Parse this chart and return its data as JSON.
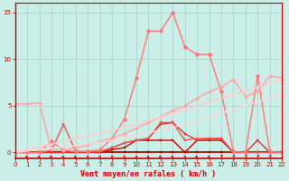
{
  "xlabel": "Vent moyen/en rafales ( km/h )",
  "bg_color": "#cceee8",
  "grid_color": "#aaddcc",
  "axis_color": "#cc0000",
  "text_color": "#cc0000",
  "xlim": [
    0,
    22
  ],
  "ylim": [
    -0.6,
    16
  ],
  "yticks": [
    0,
    5,
    10,
    15
  ],
  "xticks": [
    0,
    1,
    2,
    3,
    4,
    5,
    6,
    7,
    8,
    9,
    10,
    11,
    12,
    13,
    14,
    15,
    16,
    17,
    18,
    19,
    20,
    21,
    22
  ],
  "series": [
    {
      "x": [
        0,
        1,
        2,
        3,
        4,
        5,
        6,
        7,
        8,
        9,
        10,
        11,
        12,
        13,
        14,
        15,
        16,
        17,
        18,
        19,
        20,
        21,
        22
      ],
      "y": [
        0,
        0,
        0,
        0,
        0,
        0,
        0,
        0,
        0,
        0,
        0,
        0,
        0,
        0,
        0,
        0,
        0,
        0,
        0,
        0,
        0,
        0,
        0
      ],
      "color": "#aa0000",
      "lw": 1.2,
      "marker": "s",
      "ms": 2.0
    },
    {
      "x": [
        0,
        1,
        2,
        3,
        4,
        5,
        6,
        7,
        8,
        9,
        10,
        11,
        12,
        13,
        14,
        15,
        16,
        17,
        18,
        19,
        20,
        21,
        22
      ],
      "y": [
        0,
        0,
        0,
        0,
        0,
        0,
        0,
        0,
        0.3,
        0.5,
        1.3,
        1.3,
        1.3,
        1.3,
        0,
        1.3,
        1.3,
        1.3,
        0,
        0,
        0,
        0,
        0
      ],
      "color": "#cc0000",
      "lw": 1.0,
      "marker": "s",
      "ms": 2.0
    },
    {
      "x": [
        0,
        1,
        2,
        3,
        4,
        5,
        6,
        7,
        8,
        9,
        10,
        11,
        12,
        13,
        14,
        15,
        16,
        17,
        18,
        19,
        20,
        21,
        22
      ],
      "y": [
        0,
        0,
        0,
        0,
        0,
        0,
        0,
        0,
        0.5,
        1.0,
        1.3,
        1.5,
        3.0,
        3.2,
        2.0,
        1.3,
        1.5,
        1.5,
        0,
        0,
        1.3,
        0,
        0
      ],
      "color": "#dd3333",
      "lw": 1.0,
      "marker": "s",
      "ms": 2.0
    },
    {
      "x": [
        0,
        1,
        2,
        3,
        4,
        5,
        6,
        7,
        8,
        9,
        10,
        11,
        12,
        13,
        14,
        15,
        16,
        17,
        18,
        19,
        20,
        21,
        22
      ],
      "y": [
        0,
        0,
        0,
        0.2,
        3.0,
        0.1,
        0.1,
        0.1,
        0.5,
        1.0,
        1.3,
        1.5,
        3.2,
        3.2,
        1.3,
        1.5,
        1.5,
        1.5,
        0,
        0,
        0,
        0,
        0
      ],
      "color": "#ee5555",
      "lw": 1.0,
      "marker": "s",
      "ms": 2.0
    },
    {
      "x": [
        0,
        1,
        2,
        3,
        4,
        5,
        6,
        7,
        8,
        9,
        10,
        11,
        12,
        13,
        14,
        15,
        16,
        17,
        18,
        19,
        20,
        21,
        22
      ],
      "y": [
        0,
        0,
        0,
        1.2,
        0.2,
        0.1,
        0.1,
        0.3,
        1.5,
        3.5,
        8.0,
        13.0,
        13.0,
        15.0,
        11.3,
        10.5,
        10.5,
        6.5,
        0.1,
        0,
        8.2,
        0.1,
        0
      ],
      "color": "#ff7777",
      "lw": 1.0,
      "marker": "D",
      "ms": 2.5
    },
    {
      "x": [
        0,
        1,
        2,
        3,
        4,
        5,
        6,
        7,
        8,
        9,
        10,
        11,
        12,
        13,
        14,
        15,
        16,
        17,
        18,
        19,
        20,
        21,
        22
      ],
      "y": [
        5.2,
        5.2,
        5.3,
        0.3,
        0.2,
        0.5,
        0.8,
        1.2,
        1.5,
        2.0,
        2.6,
        3.2,
        3.8,
        4.5,
        5.0,
        5.8,
        6.5,
        7.0,
        7.8,
        6.0,
        6.5,
        8.2,
        8.0
      ],
      "color": "#ffaaaa",
      "lw": 1.2,
      "marker": "D",
      "ms": 2.0
    },
    {
      "x": [
        0,
        1,
        2,
        3,
        4,
        5,
        6,
        7,
        8,
        9,
        10,
        11,
        12,
        13,
        14,
        15,
        16,
        17,
        18,
        19,
        20,
        21,
        22
      ],
      "y": [
        0,
        0.3,
        0.6,
        0.9,
        1.2,
        1.5,
        1.8,
        2.1,
        2.4,
        2.7,
        3.0,
        3.4,
        3.8,
        4.2,
        4.6,
        5.0,
        5.4,
        5.8,
        6.2,
        6.6,
        7.0,
        7.4,
        7.8
      ],
      "color": "#ffcccc",
      "lw": 1.2,
      "marker": null,
      "ms": 0
    },
    {
      "x": [
        0,
        1,
        2,
        3,
        4,
        5,
        6,
        7,
        8,
        9,
        10,
        11,
        12,
        13,
        14,
        15,
        16,
        17,
        18,
        19,
        20,
        21,
        22
      ],
      "y": [
        0,
        0.15,
        0.3,
        0.45,
        0.6,
        0.75,
        0.9,
        1.1,
        1.3,
        1.5,
        1.8,
        2.1,
        2.4,
        2.7,
        3.0,
        3.4,
        3.8,
        4.2,
        4.6,
        5.0,
        5.4,
        5.8,
        6.2
      ],
      "color": "#ffd8d8",
      "lw": 1.0,
      "marker": null,
      "ms": 0
    }
  ],
  "wind_arrows": {
    "x": [
      0,
      1,
      2,
      3,
      4,
      5,
      6,
      7,
      8,
      9,
      10,
      11,
      12,
      13,
      14,
      15,
      16,
      17,
      18,
      19,
      20,
      21,
      22
    ],
    "angles": [
      225,
      225,
      225,
      225,
      225,
      225,
      180,
      180,
      180,
      180,
      180,
      225,
      225,
      225,
      180,
      225,
      225,
      45,
      45,
      45,
      45,
      45,
      90
    ]
  }
}
